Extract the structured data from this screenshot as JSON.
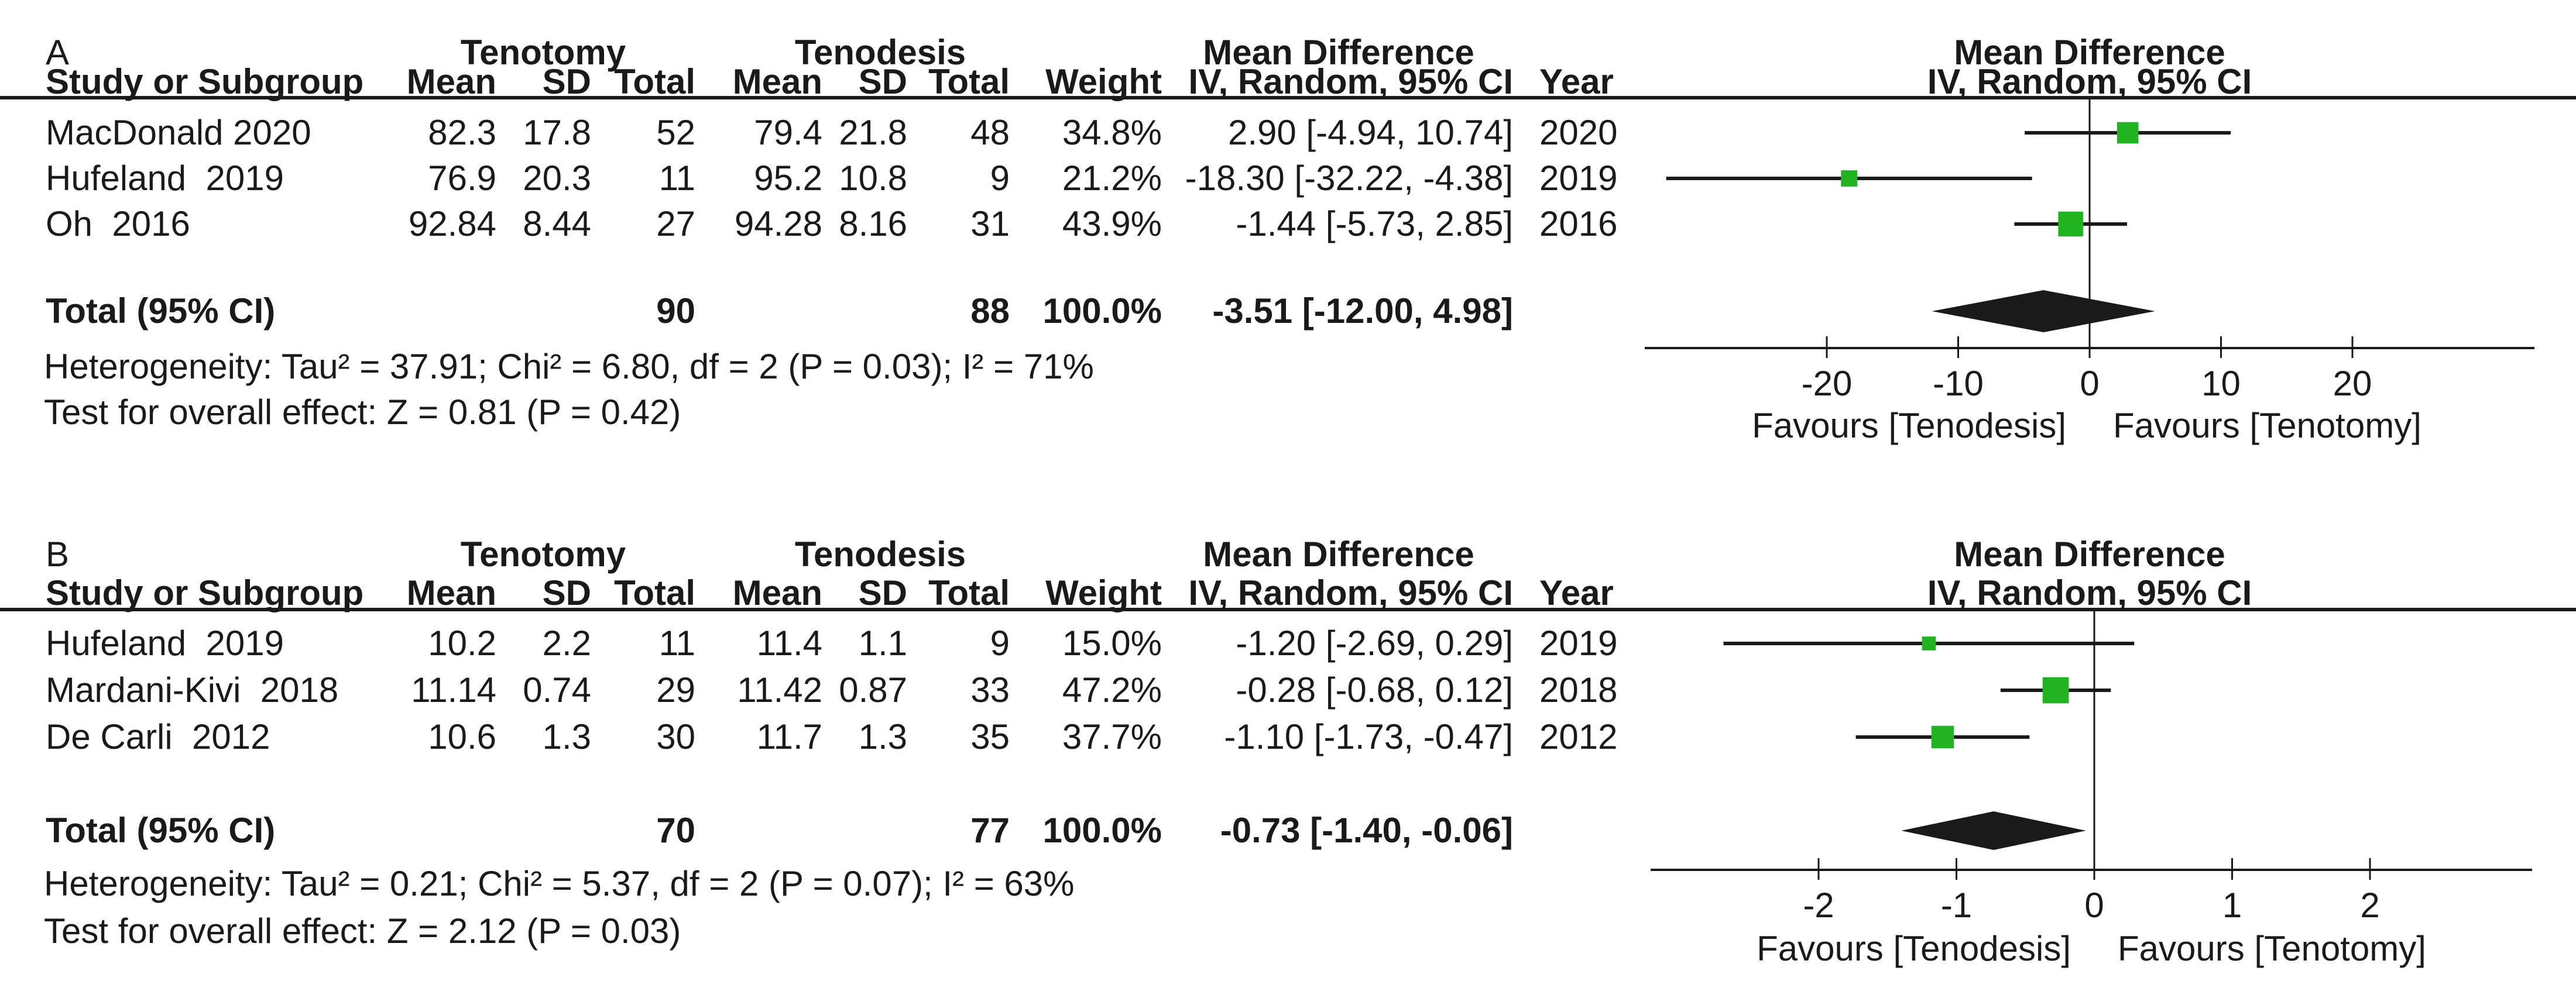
{
  "chart_data": [
    {
      "type": "forest",
      "panel_label": "A",
      "group1": "Tenotomy",
      "group2": "Tenodesis",
      "effect_header": "Mean Difference",
      "method_header": "IV, Random, 95% CI",
      "columns": {
        "study": "Study or Subgroup",
        "mean": "Mean",
        "sd": "SD",
        "total": "Total",
        "weight": "Weight",
        "ci": "IV, Random, 95% CI",
        "year": "Year"
      },
      "studies": [
        {
          "name": "MacDonald 2020",
          "mean1": "82.3",
          "sd1": "17.8",
          "n1": "52",
          "mean2": "79.4",
          "sd2": "21.8",
          "n2": "48",
          "weight_text": "34.8%",
          "weight_pct": 34.8,
          "ci_text": "2.90 [-4.94, 10.74]",
          "year": "2020",
          "est": 2.9,
          "lo": -4.94,
          "hi": 10.74
        },
        {
          "name": "Hufeland  2019",
          "mean1": "76.9",
          "sd1": "20.3",
          "n1": "11",
          "mean2": "95.2",
          "sd2": "10.8",
          "n2": "9",
          "weight_text": "21.2%",
          "weight_pct": 21.2,
          "ci_text": "-18.30 [-32.22, -4.38]",
          "year": "2019",
          "est": -18.3,
          "lo": -32.22,
          "hi": -4.38
        },
        {
          "name": "Oh  2016",
          "mean1": "92.84",
          "sd1": "8.44",
          "n1": "27",
          "mean2": "94.28",
          "sd2": "8.16",
          "n2": "31",
          "weight_text": "43.9%",
          "weight_pct": 43.9,
          "ci_text": "-1.44 [-5.73, 2.85]",
          "year": "2016",
          "est": -1.44,
          "lo": -5.73,
          "hi": 2.85
        }
      ],
      "total": {
        "label": "Total (95% CI)",
        "n1": "90",
        "n2": "88",
        "weight_text": "100.0%",
        "ci_text": "-3.51 [-12.00, 4.98]",
        "est": -3.51,
        "lo": -12.0,
        "hi": 4.98
      },
      "heterogeneity": "Heterogeneity: Tau² = 37.91; Chi² = 6.80, df = 2 (P = 0.03); I² = 71%",
      "overall_effect": "Test for overall effect: Z = 0.81 (P = 0.42)",
      "axis": {
        "ticks": [
          -20,
          -10,
          0,
          10,
          20
        ],
        "tick_labels": [
          "-20",
          "-10",
          "0",
          "10",
          "20"
        ],
        "min": -33.5,
        "max": 34,
        "left_label": "Favours [Tenodesis]",
        "right_label": "Favours [Tenotomy]"
      }
    },
    {
      "type": "forest",
      "panel_label": "B",
      "group1": "Tenotomy",
      "group2": "Tenodesis",
      "effect_header": "Mean Difference",
      "method_header": "IV, Random, 95% CI",
      "columns": {
        "study": "Study or Subgroup",
        "mean": "Mean",
        "sd": "SD",
        "total": "Total",
        "weight": "Weight",
        "ci": "IV, Random, 95% CI",
        "year": "Year"
      },
      "studies": [
        {
          "name": "Hufeland  2019",
          "mean1": "10.2",
          "sd1": "2.2",
          "n1": "11",
          "mean2": "11.4",
          "sd2": "1.1",
          "n2": "9",
          "weight_text": "15.0%",
          "weight_pct": 15.0,
          "ci_text": "-1.20 [-2.69, 0.29]",
          "year": "2019",
          "est": -1.2,
          "lo": -2.69,
          "hi": 0.29
        },
        {
          "name": "Mardani-Kivi  2018",
          "mean1": "11.14",
          "sd1": "0.74",
          "n1": "29",
          "mean2": "11.42",
          "sd2": "0.87",
          "n2": "33",
          "weight_text": "47.2%",
          "weight_pct": 47.2,
          "ci_text": "-0.28 [-0.68, 0.12]",
          "year": "2018",
          "est": -0.28,
          "lo": -0.68,
          "hi": 0.12
        },
        {
          "name": "De Carli  2012",
          "mean1": "10.6",
          "sd1": "1.3",
          "n1": "30",
          "mean2": "11.7",
          "sd2": "1.3",
          "n2": "35",
          "weight_text": "37.7%",
          "weight_pct": 37.7,
          "ci_text": "-1.10 [-1.73, -0.47]",
          "year": "2012",
          "est": -1.1,
          "lo": -1.73,
          "hi": -0.47
        }
      ],
      "total": {
        "label": "Total (95% CI)",
        "n1": "70",
        "n2": "77",
        "weight_text": "100.0%",
        "ci_text": "-0.73 [-1.40, -0.06]",
        "est": -0.73,
        "lo": -1.4,
        "hi": -0.06
      },
      "heterogeneity": "Heterogeneity: Tau² = 0.21; Chi² = 5.37, df = 2 (P = 0.07); I² = 63%",
      "overall_effect": "Test for overall effect: Z = 2.12 (P = 0.03)",
      "axis": {
        "ticks": [
          -2,
          -1,
          0,
          1,
          2
        ],
        "tick_labels": [
          "-2",
          "-1",
          "0",
          "1",
          "2"
        ],
        "min": -3.2,
        "max": 3.2,
        "left_label": "Favours [Tenodesis]",
        "right_label": "Favours [Tenotomy]"
      }
    }
  ],
  "colors": {
    "marker_green": "#22b322",
    "line_black": "#1a1a1a"
  }
}
